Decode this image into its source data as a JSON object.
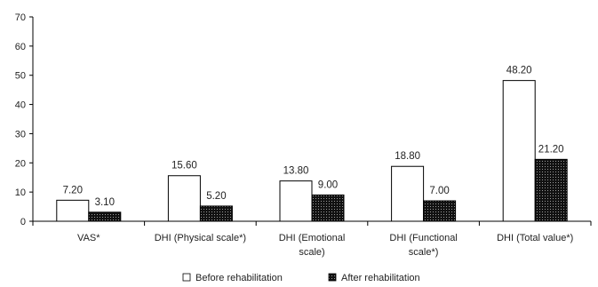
{
  "chart_data": {
    "type": "bar",
    "categories": [
      [
        "VAS*"
      ],
      [
        "DHI (Physical scale*)"
      ],
      [
        "DHI (Emotional",
        "scale)"
      ],
      [
        "DHI (Functional",
        "scale*)"
      ],
      [
        "DHI (Total value*)"
      ]
    ],
    "series": [
      {
        "name": "Before rehabilitation",
        "values": [
          7.2,
          15.6,
          13.8,
          18.8,
          48.2
        ],
        "labels": [
          "7.20",
          "15.60",
          "13.80",
          "18.80",
          "48.20"
        ],
        "fill": "white"
      },
      {
        "name": "After rehabilitation",
        "values": [
          3.1,
          5.2,
          9.0,
          7.0,
          21.2
        ],
        "labels": [
          "3.10",
          "5.20",
          "9.00",
          "7.00",
          "21.20"
        ],
        "fill": "dotted-black"
      }
    ],
    "yticks": [
      "0",
      "10",
      "20",
      "30",
      "40",
      "50",
      "60",
      "70"
    ],
    "ylim": [
      0,
      70
    ],
    "title": "",
    "xlabel": "",
    "ylabel": "",
    "grid": false,
    "legend_position": "bottom-center"
  },
  "colors": {
    "axis": "#000000",
    "bar_outline": "#000000",
    "after_fill": "#111111",
    "before_fill": "#ffffff"
  }
}
